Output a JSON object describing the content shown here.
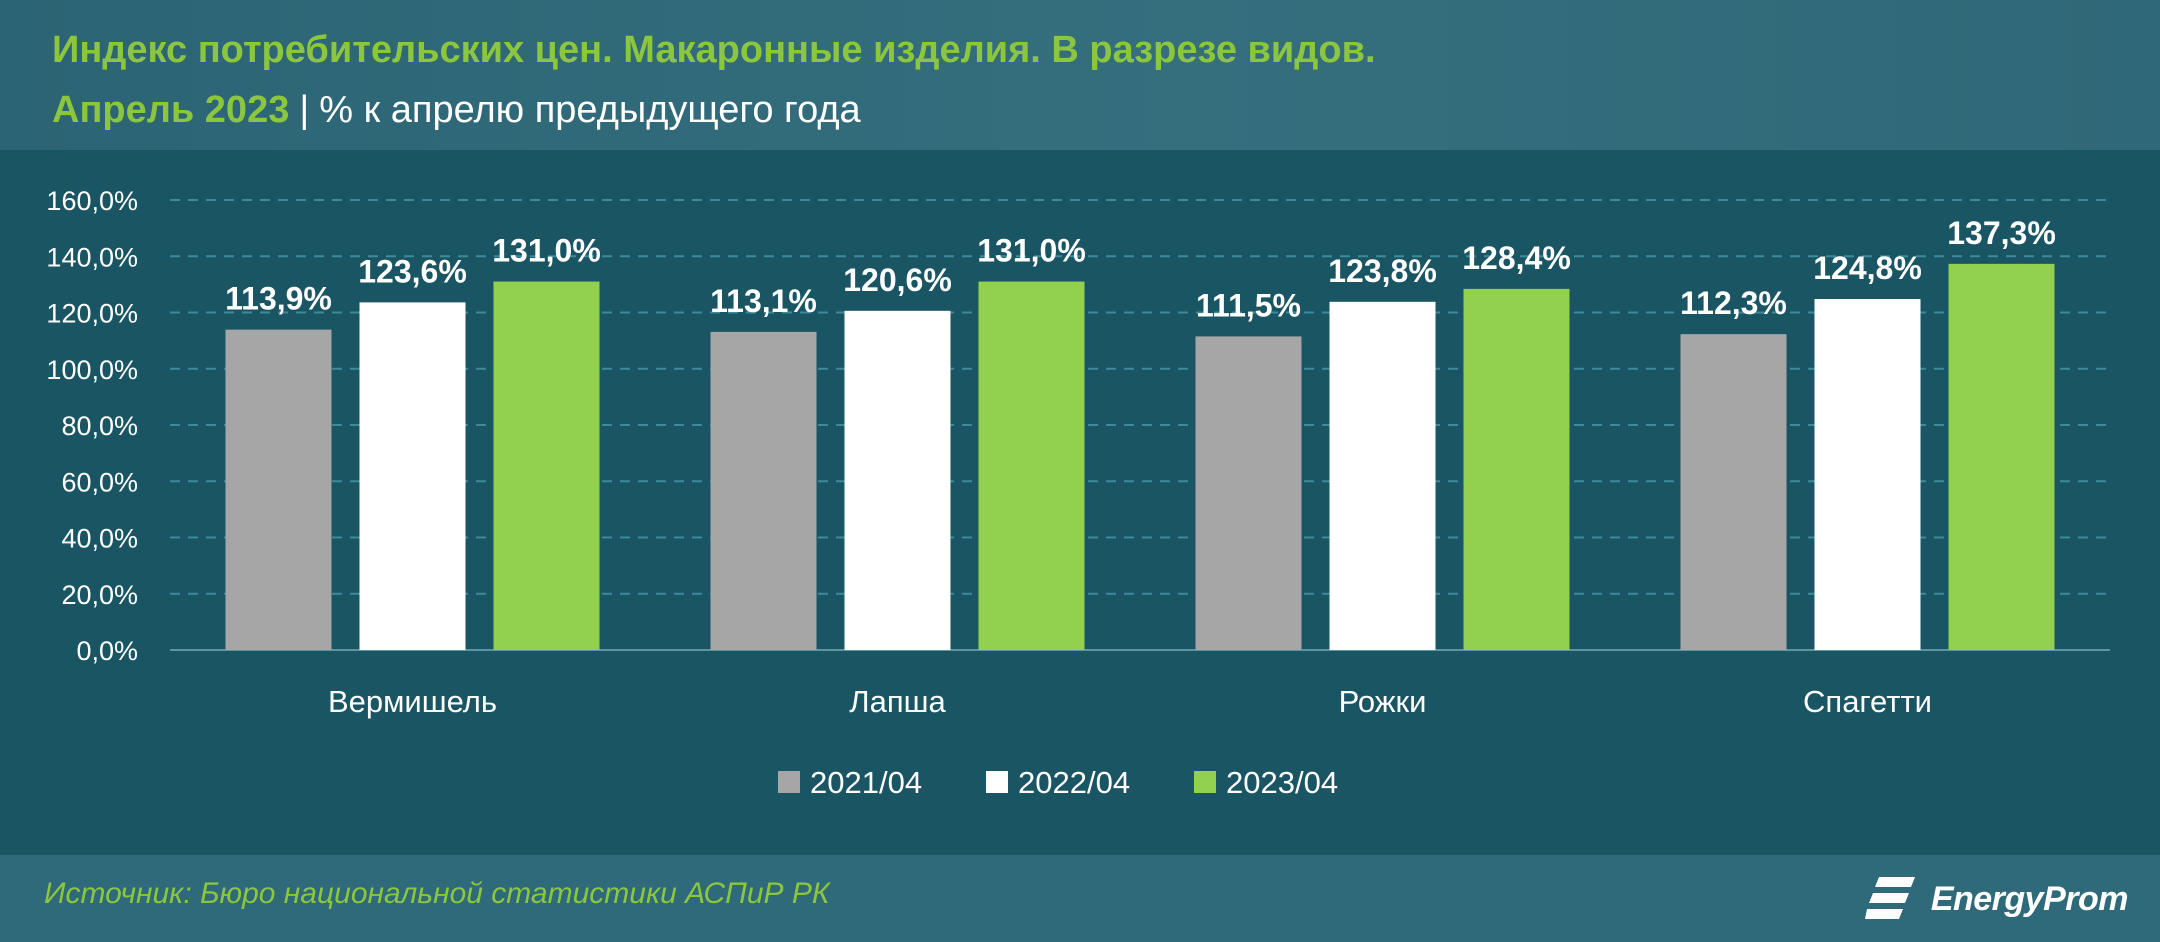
{
  "header": {
    "title_line1": "Индекс потребительских цен. Макаронные изделия. В разрезе видов.",
    "title_line2_highlight": "Апрель 2023",
    "title_line2_separator": "|",
    "title_line2_unit": "% к апрелю предыдущего года"
  },
  "chart_data": {
    "type": "bar",
    "title": "Индекс потребительских цен. Макаронные изделия. В разрезе видов. Апрель 2023 | % к апрелю предыдущего года",
    "categories": [
      "Вермишель",
      "Лапша",
      "Рожки",
      "Спагетти"
    ],
    "series": [
      {
        "name": "2021/04",
        "color": "#a6a6a6",
        "values": [
          113.9,
          113.1,
          111.5,
          112.3
        ],
        "labels": [
          "113,9%",
          "113,1%",
          "111,5%",
          "112,3%"
        ]
      },
      {
        "name": "2022/04",
        "color": "#ffffff",
        "values": [
          123.6,
          120.6,
          123.8,
          124.8
        ],
        "labels": [
          "123,6%",
          "120,6%",
          "123,8%",
          "124,8%"
        ]
      },
      {
        "name": "2023/04",
        "color": "#92d050",
        "values": [
          131.0,
          131.0,
          128.4,
          137.3
        ],
        "labels": [
          "131,0%",
          "131,0%",
          "128,4%",
          "137,3%"
        ]
      }
    ],
    "ylim": [
      0,
      160
    ],
    "yticks": [
      "0,0%",
      "20,0%",
      "40,0%",
      "60,0%",
      "80,0%",
      "100,0%",
      "120,0%",
      "140,0%",
      "160,0%"
    ],
    "grid": true,
    "legend_position": "bottom"
  },
  "footer": {
    "source": "Источник: Бюро национальной статистики АСПиР РК",
    "logo_text": "EnergyProm"
  },
  "colors": {
    "background": "#1a5564",
    "header_bg": "#2f6878",
    "accent_green": "#8cc63f"
  }
}
